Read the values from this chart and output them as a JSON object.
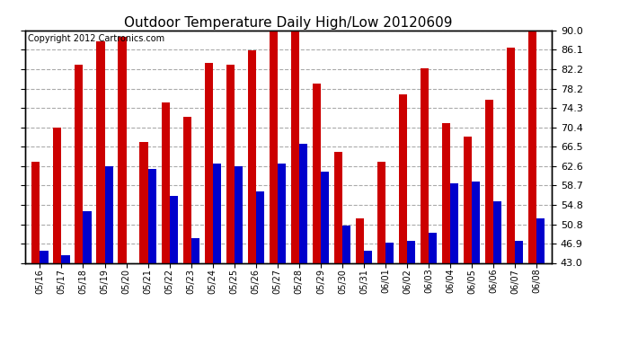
{
  "title": "Outdoor Temperature Daily High/Low 20120609",
  "copyright": "Copyright 2012 Cartronics.com",
  "dates": [
    "05/16",
    "05/17",
    "05/18",
    "05/19",
    "05/20",
    "05/21",
    "05/22",
    "05/23",
    "05/24",
    "05/25",
    "05/26",
    "05/27",
    "05/28",
    "05/29",
    "05/30",
    "05/31",
    "06/01",
    "06/02",
    "06/03",
    "06/04",
    "06/05",
    "06/06",
    "06/07",
    "06/08"
  ],
  "highs": [
    63.5,
    70.4,
    83.0,
    87.8,
    88.7,
    67.5,
    75.5,
    72.5,
    83.5,
    83.0,
    86.0,
    89.8,
    90.5,
    79.2,
    65.5,
    52.0,
    63.5,
    77.0,
    82.4,
    71.2,
    68.5,
    76.0,
    86.5,
    90.0
  ],
  "lows": [
    45.5,
    44.5,
    53.5,
    62.5,
    43.0,
    62.0,
    56.5,
    48.0,
    63.0,
    62.5,
    57.5,
    63.0,
    67.0,
    61.5,
    50.5,
    45.5,
    47.0,
    47.5,
    49.0,
    59.0,
    59.5,
    55.5,
    47.5,
    52.0
  ],
  "high_color": "#cc0000",
  "low_color": "#0000cc",
  "bg_color": "#ffffff",
  "grid_color": "#aaaaaa",
  "ylim_min": 43.0,
  "ylim_max": 90.0,
  "yticks": [
    43.0,
    46.9,
    50.8,
    54.8,
    58.7,
    62.6,
    66.5,
    70.4,
    74.3,
    78.2,
    82.2,
    86.1,
    90.0
  ],
  "title_fontsize": 11,
  "copyright_fontsize": 7,
  "tick_fontsize": 8,
  "xtick_fontsize": 7,
  "bar_width": 0.38
}
